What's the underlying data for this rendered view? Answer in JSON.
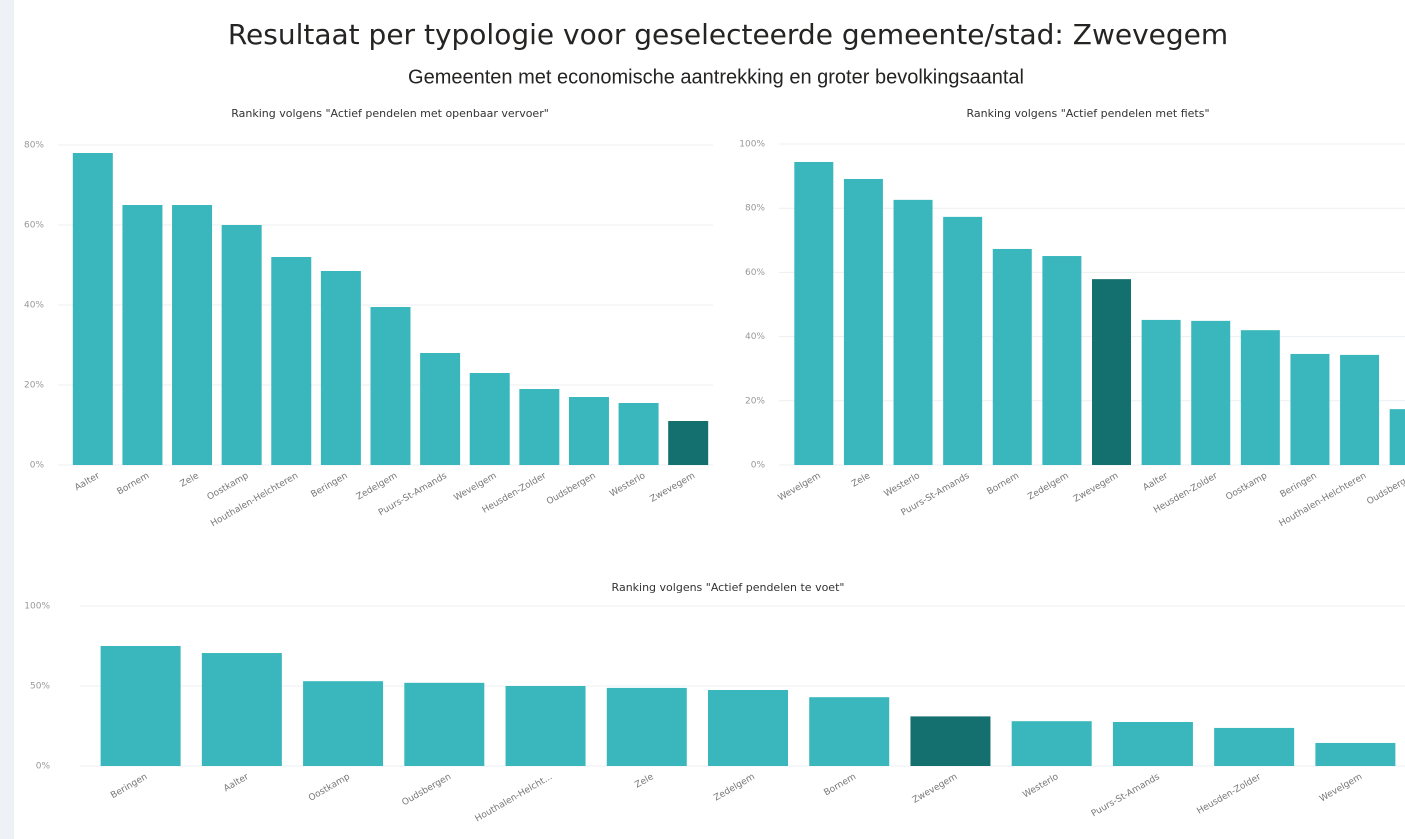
{
  "header": {
    "title": "Resultaat per typologie voor geselecteerde gemeente/stad: Zwevegem",
    "subtitle": "Gemeenten met economische aantrekking en groter bevolkingsaantal"
  },
  "chart_data": [
    {
      "type": "bar",
      "title": "Ranking volgens \"Actief pendelen met openbaar vervoer\"",
      "categories": [
        "Aalter",
        "Bornem",
        "Zele",
        "Oostkamp",
        "Houthalen-Helchteren",
        "Beringen",
        "Zedelgem",
        "Puurs-St-Amands",
        "Wevelgem",
        "Heusden-Zolder",
        "Oudsbergen",
        "Westerlo",
        "Zwevegem"
      ],
      "values": [
        78,
        65,
        65,
        60,
        52,
        48.5,
        39.5,
        28,
        23,
        19,
        17,
        15.5,
        11
      ],
      "colors": [
        "#3ab7bd",
        "#3ab7bd",
        "#3ab7bd",
        "#3ab7bd",
        "#3ab7bd",
        "#3ab7bd",
        "#3ab7bd",
        "#3ab7bd",
        "#3ab7bd",
        "#3ab7bd",
        "#3ab7bd",
        "#3ab7bd",
        "#14706f"
      ],
      "ylim": [
        0,
        80
      ],
      "yticks": [
        {
          "value": 0,
          "label": "0%"
        },
        {
          "value": 20,
          "label": "20%"
        },
        {
          "value": 40,
          "label": "40%"
        },
        {
          "value": 60,
          "label": "60%"
        },
        {
          "value": 80,
          "label": "80%"
        }
      ],
      "grid": true
    },
    {
      "type": "bar",
      "title": "Ranking volgens \"Actief pendelen met fiets\"",
      "categories": [
        "Wevelgem",
        "Zele",
        "Westerlo",
        "Puurs-St-Amands",
        "Bornem",
        "Zedelgem",
        "Zwevegem",
        "Aalter",
        "Heusden-Zolder",
        "Oostkamp",
        "Beringen",
        "Houthalen-Helchteren",
        "Oudsbergen"
      ],
      "values": [
        94.4,
        89.1,
        82.6,
        77.3,
        67.3,
        65.1,
        57.9,
        45.2,
        44.9,
        42,
        34.6,
        34.3,
        17.4
      ],
      "colors": [
        "#3ab7bd",
        "#3ab7bd",
        "#3ab7bd",
        "#3ab7bd",
        "#3ab7bd",
        "#3ab7bd",
        "#14706f",
        "#3ab7bd",
        "#3ab7bd",
        "#3ab7bd",
        "#3ab7bd",
        "#3ab7bd",
        "#3ab7bd"
      ],
      "ylim": [
        0,
        100
      ],
      "yticks": [
        {
          "value": 0,
          "label": "0%"
        },
        {
          "value": 20,
          "label": "20%"
        },
        {
          "value": 40,
          "label": "40%"
        },
        {
          "value": 60,
          "label": "60%"
        },
        {
          "value": 80,
          "label": "80%"
        },
        {
          "value": 100,
          "label": "100%"
        }
      ],
      "grid": true
    },
    {
      "type": "bar",
      "title": "Ranking volgens \"Actief pendelen te voet\"",
      "categories": [
        "Beringen",
        "Aalter",
        "Oostkamp",
        "Oudsbergen",
        "Houthalen-Helcht...",
        "Zele",
        "Zedelgem",
        "Bornem",
        "Zwevegem",
        "Westerlo",
        "Puurs-St-Amands",
        "Heusden-Zolder",
        "Wevelgem"
      ],
      "values": [
        75,
        70.6,
        53,
        52,
        50,
        48.8,
        47.5,
        43,
        31,
        28,
        27.5,
        23.8,
        14.4
      ],
      "colors": [
        "#3ab7bd",
        "#3ab7bd",
        "#3ab7bd",
        "#3ab7bd",
        "#3ab7bd",
        "#3ab7bd",
        "#3ab7bd",
        "#3ab7bd",
        "#14706f",
        "#3ab7bd",
        "#3ab7bd",
        "#3ab7bd",
        "#3ab7bd"
      ],
      "ylim": [
        0,
        100
      ],
      "yticks": [
        {
          "value": 0,
          "label": "0%"
        },
        {
          "value": 50,
          "label": "50%"
        },
        {
          "value": 100,
          "label": "100%"
        }
      ],
      "grid": true
    }
  ]
}
